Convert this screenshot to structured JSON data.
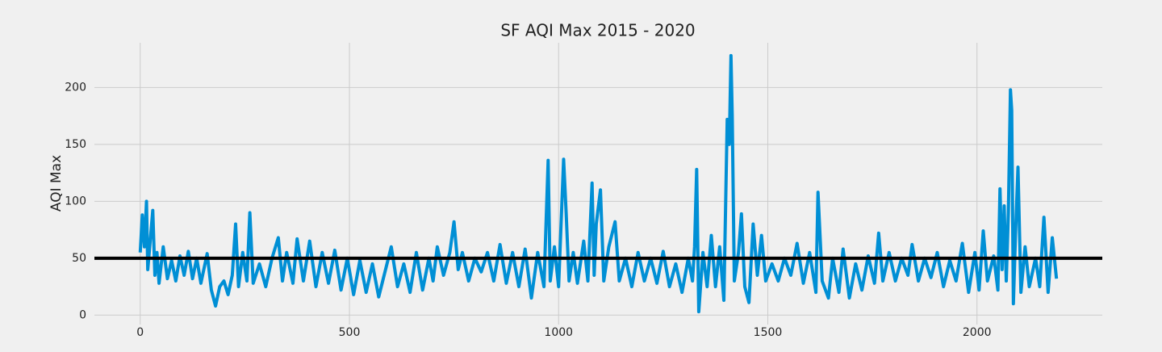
{
  "chart_data": {
    "type": "line",
    "title": "SF AQI Max 2015 - 2020",
    "y_label": "AQI Max",
    "x": [
      0,
      5,
      10,
      15,
      18,
      25,
      30,
      35,
      40,
      45,
      55,
      65,
      75,
      85,
      95,
      105,
      115,
      125,
      135,
      145,
      160,
      170,
      180,
      190,
      200,
      210,
      220,
      228,
      235,
      245,
      255,
      262,
      270,
      285,
      300,
      315,
      330,
      340,
      350,
      365,
      375,
      390,
      405,
      420,
      435,
      450,
      465,
      480,
      495,
      510,
      525,
      540,
      555,
      570,
      585,
      600,
      615,
      630,
      645,
      660,
      675,
      690,
      700,
      710,
      725,
      740,
      750,
      760,
      770,
      785,
      800,
      815,
      830,
      845,
      860,
      875,
      890,
      905,
      920,
      935,
      950,
      965,
      975,
      980,
      990,
      1000,
      1012,
      1018,
      1025,
      1035,
      1045,
      1060,
      1070,
      1080,
      1085,
      1090,
      1100,
      1108,
      1120,
      1135,
      1145,
      1160,
      1175,
      1190,
      1205,
      1220,
      1235,
      1250,
      1265,
      1280,
      1295,
      1310,
      1320,
      1325,
      1330,
      1335,
      1345,
      1355,
      1365,
      1375,
      1385,
      1395,
      1403,
      1408,
      1412,
      1415,
      1420,
      1430,
      1437,
      1445,
      1455,
      1465,
      1475,
      1485,
      1495,
      1510,
      1525,
      1540,
      1555,
      1570,
      1585,
      1600,
      1615,
      1620,
      1630,
      1645,
      1655,
      1670,
      1680,
      1695,
      1710,
      1725,
      1740,
      1755,
      1765,
      1775,
      1790,
      1805,
      1820,
      1835,
      1845,
      1860,
      1875,
      1890,
      1905,
      1920,
      1935,
      1950,
      1965,
      1980,
      1995,
      2005,
      2015,
      2025,
      2040,
      2050,
      2055,
      2060,
      2065,
      2070,
      2075,
      2080,
      2083,
      2087,
      2092,
      2098,
      2105,
      2115,
      2125,
      2140,
      2150,
      2160,
      2170,
      2180,
      2190
    ],
    "series": [
      {
        "color": "#008fd5",
        "values": [
          55,
          88,
          60,
          100,
          40,
          70,
          92,
          35,
          55,
          28,
          60,
          32,
          48,
          30,
          52,
          35,
          56,
          32,
          50,
          28,
          54,
          22,
          8,
          25,
          30,
          18,
          35,
          80,
          25,
          55,
          30,
          90,
          28,
          45,
          25,
          50,
          68,
          30,
          55,
          28,
          67,
          30,
          65,
          25,
          55,
          28,
          57,
          22,
          50,
          18,
          48,
          20,
          45,
          16,
          38,
          60,
          25,
          45,
          20,
          55,
          22,
          50,
          30,
          60,
          35,
          55,
          82,
          40,
          55,
          30,
          50,
          38,
          55,
          30,
          62,
          28,
          55,
          25,
          58,
          15,
          55,
          25,
          136,
          30,
          60,
          25,
          137,
          90,
          30,
          55,
          28,
          65,
          30,
          116,
          35,
          80,
          110,
          30,
          60,
          82,
          30,
          50,
          25,
          55,
          30,
          50,
          28,
          56,
          25,
          45,
          20,
          50,
          30,
          60,
          128,
          3,
          55,
          25,
          70,
          25,
          60,
          13,
          172,
          150,
          228,
          175,
          30,
          55,
          89,
          25,
          11,
          80,
          35,
          70,
          30,
          45,
          30,
          50,
          35,
          63,
          28,
          55,
          20,
          108,
          30,
          15,
          50,
          20,
          58,
          15,
          45,
          22,
          52,
          28,
          72,
          30,
          55,
          30,
          50,
          35,
          62,
          30,
          50,
          33,
          55,
          25,
          48,
          30,
          63,
          20,
          55,
          22,
          74,
          30,
          52,
          22,
          111,
          40,
          96,
          30,
          90,
          198,
          180,
          10,
          70,
          130,
          20,
          60,
          25,
          50,
          25,
          86,
          20,
          68,
          32
        ]
      }
    ],
    "hline": {
      "value": 50,
      "color": "#000000"
    },
    "xlim": [
      -109.5,
      2299.5
    ],
    "ylim": [
      -8.3,
      239.3
    ],
    "xticks": [
      0,
      500,
      1000,
      1500,
      2000
    ],
    "yticks": [
      0,
      50,
      100,
      150,
      200
    ],
    "grid": true
  }
}
